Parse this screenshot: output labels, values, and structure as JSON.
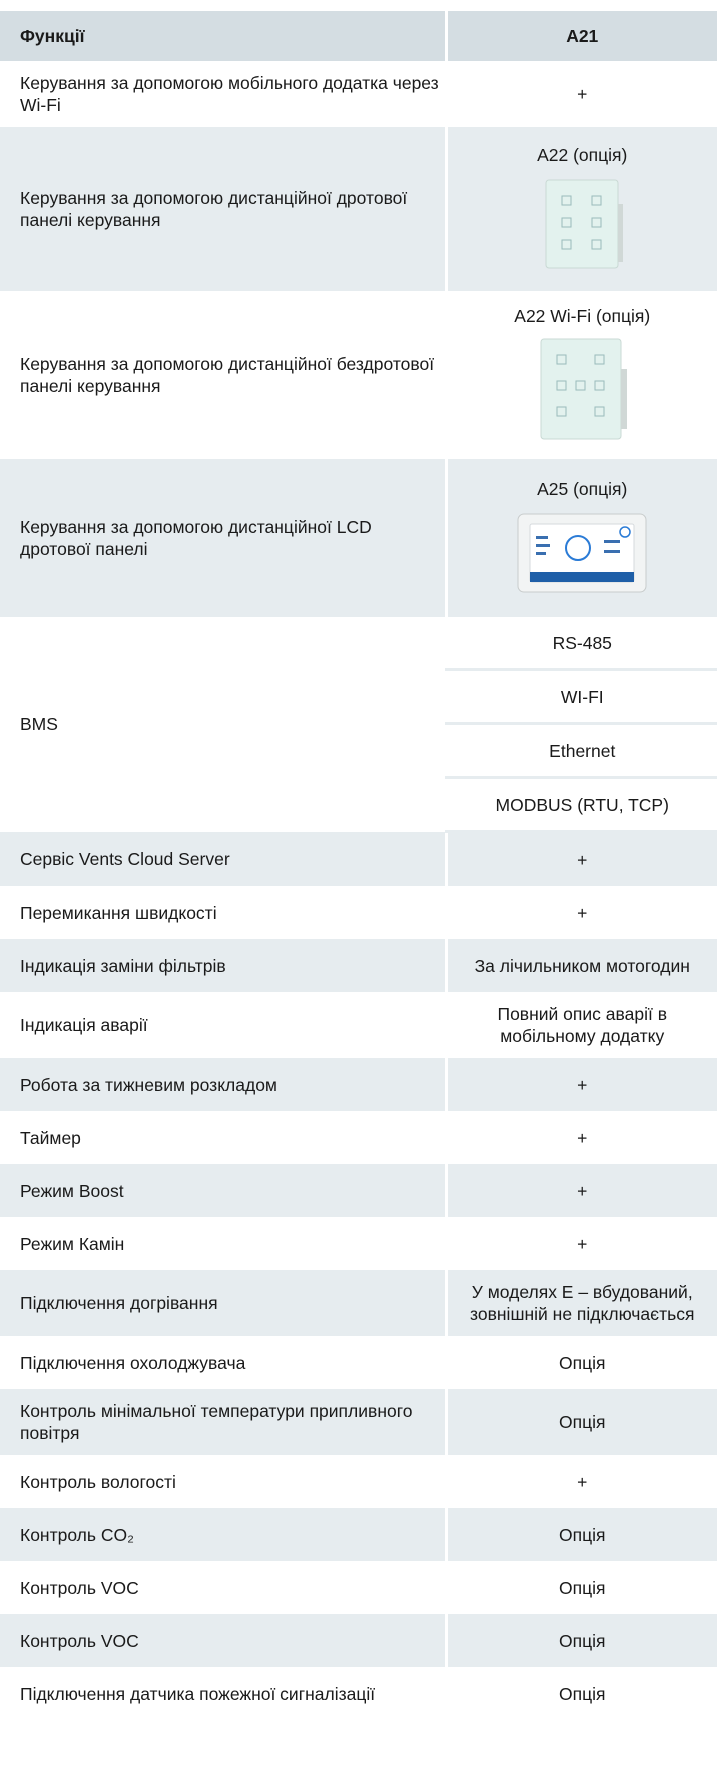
{
  "header": {
    "feature": "Функції",
    "model": "A21"
  },
  "rows": [
    {
      "feature": "Керування за допомогою мобільного додатка через Wi-Fi",
      "value": "+"
    },
    {
      "feature": "Керування за допомогою дистанційної дротової панелі керування",
      "caption": "A22 (опція)"
    },
    {
      "feature": "Керування за допомогою дистанційної бездротової панелі керування",
      "caption": "A22 Wi-Fi (опція)"
    },
    {
      "feature": "Керування за допомогою дистанційної  LCD дротової панелі",
      "caption": "A25 (опція)"
    },
    {
      "feature": "BMS",
      "options": [
        "RS-485",
        "WI-FI",
        "Ethernet",
        "MODBUS (RTU, TCP)"
      ]
    },
    {
      "feature": "Сервіс Vents Cloud Server",
      "value": "+"
    },
    {
      "feature": "Перемикання швидкості",
      "value": "+"
    },
    {
      "feature": "Індикація заміни фільтрів",
      "value": "За лічильником мотогодин"
    },
    {
      "feature": "Індикація аварії",
      "value": "Повний опис аварії в мобільному додатку"
    },
    {
      "feature": "Робота за тижневим розкладом",
      "value": "+"
    },
    {
      "feature": "Таймер",
      "value": "+"
    },
    {
      "feature": "Режим Boost",
      "value": "+"
    },
    {
      "feature": "Режим Камін",
      "value": "+"
    },
    {
      "feature": "Підключення догрівання",
      "value": "У моделях E – вбудований, зовнішній не підключається"
    },
    {
      "feature": "Підключення охолоджувача",
      "value": "Опція"
    },
    {
      "feature": "Контроль мінімальної температури припливного повітря",
      "value": "Опція"
    },
    {
      "feature": "Контроль вологості",
      "value": "+"
    },
    {
      "feature": "Контроль CO₂",
      "value": "Опція"
    },
    {
      "feature": "Контроль VOC",
      "value": "Опція"
    },
    {
      "feature": "Контроль VOC",
      "value": "Опція"
    },
    {
      "feature": "Підключення датчика пожежної сигналізації",
      "value": "Опція"
    }
  ]
}
